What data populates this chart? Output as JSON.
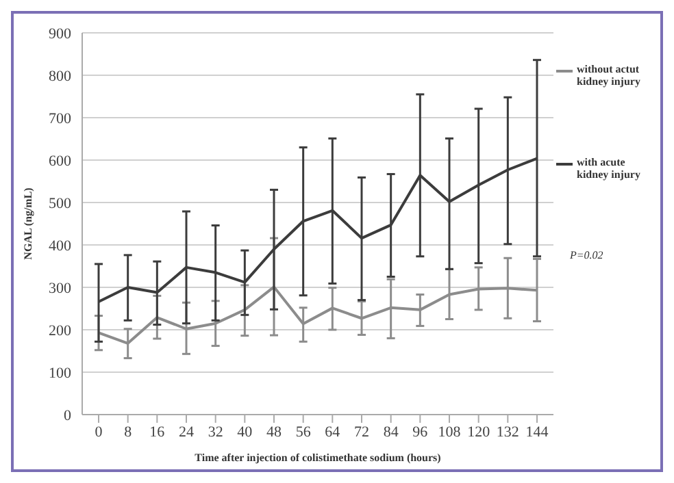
{
  "chart_data": {
    "type": "line",
    "xlabel": "Time after injection of colistimethate sodium (hours)",
    "ylabel": "NGAL (ng/mL)",
    "categories": [
      "0",
      "8",
      "16",
      "24",
      "32",
      "40",
      "48",
      "56",
      "64",
      "72",
      "84",
      "96",
      "108",
      "120",
      "132",
      "144"
    ],
    "series": [
      {
        "name": "without actut kidney injury",
        "color": "#8c8c8c",
        "values": [
          193,
          168,
          229,
          202,
          215,
          247,
          301,
          214,
          251,
          227,
          252,
          247,
          283,
          296,
          298,
          293
        ],
        "errors": [
          [
            152,
            233
          ],
          [
            133,
            202
          ],
          [
            179,
            280
          ],
          [
            143,
            264
          ],
          [
            162,
            268
          ],
          [
            186,
            305
          ],
          [
            187,
            416
          ],
          [
            172,
            252
          ],
          [
            200,
            299
          ],
          [
            188,
            267
          ],
          [
            180,
            319
          ],
          [
            209,
            283
          ],
          [
            225,
            343
          ],
          [
            247,
            347
          ],
          [
            227,
            369
          ],
          [
            220,
            367
          ]
        ]
      },
      {
        "name": "with acute kidney injury",
        "color": "#3c3c3c",
        "values": [
          266,
          300,
          288,
          347,
          335,
          312,
          390,
          456,
          481,
          416,
          447,
          564,
          502,
          541,
          577,
          604
        ],
        "errors": [
          [
            172,
            355
          ],
          [
            222,
            376
          ],
          [
            212,
            361
          ],
          [
            215,
            479
          ],
          [
            222,
            446
          ],
          [
            235,
            387
          ],
          [
            248,
            530
          ],
          [
            281,
            630
          ],
          [
            309,
            651
          ],
          [
            270,
            559
          ],
          [
            325,
            567
          ],
          [
            373,
            755
          ],
          [
            343,
            651
          ],
          [
            357,
            721
          ],
          [
            402,
            748
          ],
          [
            373,
            836
          ]
        ]
      }
    ],
    "ylim": [
      0,
      900
    ],
    "yticks": [
      0,
      100,
      200,
      300,
      400,
      500,
      600,
      700,
      800,
      900
    ],
    "grid": "y",
    "legend": "right",
    "marker": "none",
    "line_style": "solid",
    "annotations": [
      "P=0.02"
    ]
  }
}
